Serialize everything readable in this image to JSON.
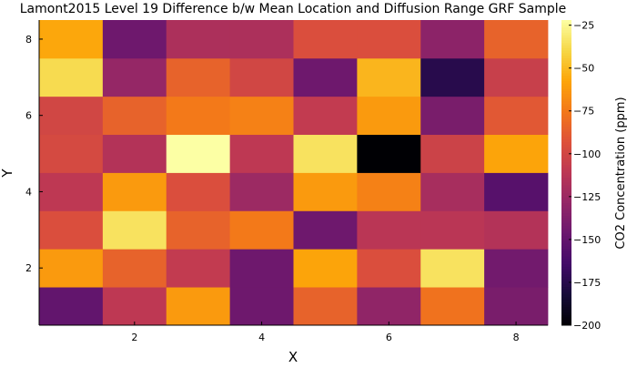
{
  "chart_data": {
    "type": "heatmap",
    "title": "Lamont2015 Level 19 Difference b/w Mean Location and Diffusion Range GRF Sample",
    "xlabel": "X",
    "ylabel": "Y",
    "colorbar_label": "CO2 Concentration (ppm)",
    "colormap": "inferno",
    "color_range": [
      -200,
      -22
    ],
    "x": [
      1,
      2,
      3,
      4,
      5,
      6,
      7,
      8
    ],
    "y": [
      1,
      2,
      3,
      4,
      5,
      6,
      7,
      8
    ],
    "xlim": [
      0.5,
      8.5
    ],
    "ylim": [
      0.5,
      8.5
    ],
    "xticks": [
      2,
      4,
      6,
      8
    ],
    "yticks": [
      2,
      4,
      6,
      8
    ],
    "colorbar_ticks": [
      -25,
      -50,
      -75,
      -100,
      -125,
      -150,
      -175,
      -200
    ],
    "grid": false,
    "values": [
      [
        -150,
        -110,
        -62,
        -145,
        -85,
        -130,
        -78,
        -140
      ],
      [
        -62,
        -85,
        -108,
        -145,
        -58,
        -95,
        -35,
        -143
      ],
      [
        -95,
        -35,
        -85,
        -75,
        -145,
        -112,
        -112,
        -115
      ],
      [
        -110,
        -62,
        -95,
        -125,
        -62,
        -72,
        -120,
        -155
      ],
      [
        -98,
        -115,
        -22,
        -110,
        -35,
        -200,
        -103,
        -58
      ],
      [
        -100,
        -85,
        -75,
        -72,
        -108,
        -62,
        -140,
        -90
      ],
      [
        -38,
        -128,
        -85,
        -100,
        -145,
        -52,
        -175,
        -105
      ],
      [
        -57,
        -145,
        -118,
        -118,
        -95,
        -95,
        -132,
        -85
      ]
    ]
  }
}
